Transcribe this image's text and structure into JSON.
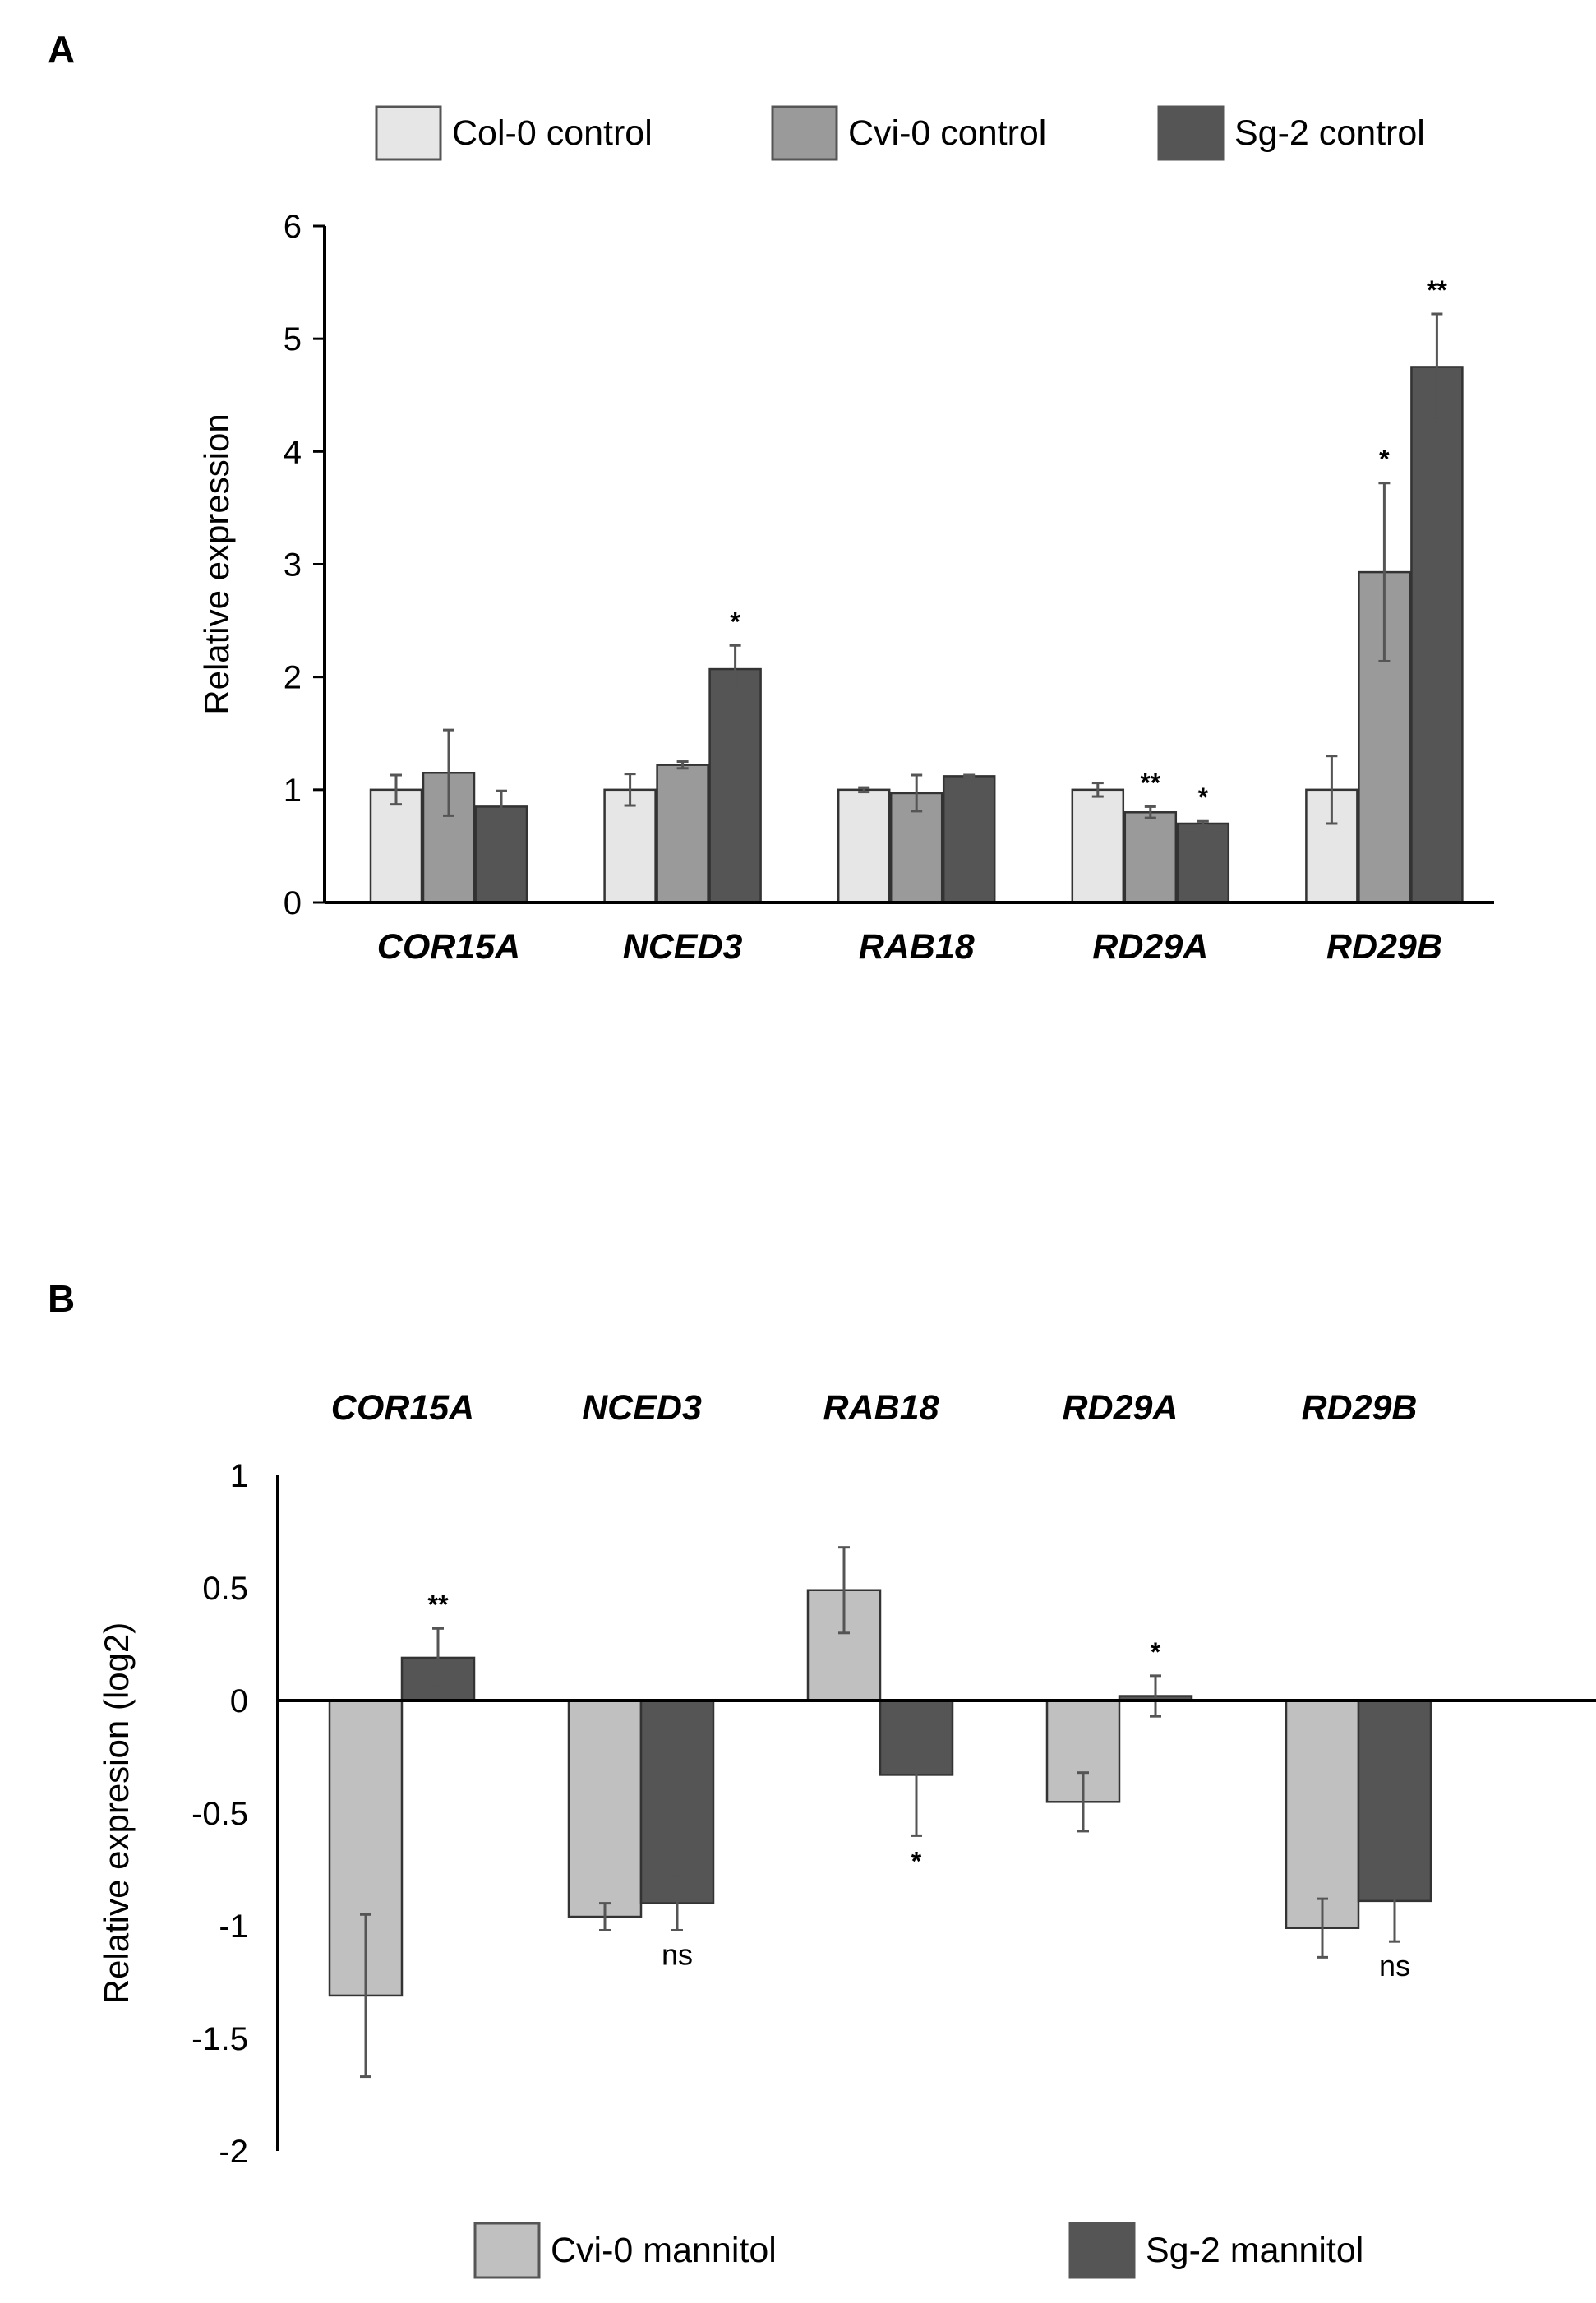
{
  "chart_data": [
    {
      "panel": "A",
      "type": "bar",
      "ylabel": "Relative expression",
      "ylim": [
        0,
        6
      ],
      "yticks": [
        0,
        1,
        2,
        3,
        4,
        5,
        6
      ],
      "categories": [
        "COR15A",
        "NCED3",
        "RAB18",
        "RD29A",
        "RD29B"
      ],
      "series": [
        {
          "name": "Col-0 control",
          "color": "#e6e6e6",
          "values": [
            1.0,
            1.0,
            1.0,
            1.0,
            1.0
          ],
          "errors": [
            0.13,
            0.14,
            0.02,
            0.06,
            0.3
          ]
        },
        {
          "name": "Cvi-0 control",
          "color": "#9a9a9a",
          "values": [
            1.15,
            1.22,
            0.97,
            0.8,
            2.93
          ],
          "errors": [
            0.38,
            0.03,
            0.16,
            0.05,
            0.79
          ]
        },
        {
          "name": "Sg-2 control",
          "color": "#555555",
          "values": [
            0.85,
            2.07,
            1.12,
            0.7,
            4.75
          ],
          "errors": [
            0.14,
            0.21,
            0.01,
            0.02,
            0.47
          ]
        }
      ],
      "significance": [
        {
          "category": "NCED3",
          "series": "Sg-2 control",
          "label": "*"
        },
        {
          "category": "RD29A",
          "series": "Cvi-0 control",
          "label": "**"
        },
        {
          "category": "RD29A",
          "series": "Sg-2 control",
          "label": "*"
        },
        {
          "category": "RD29B",
          "series": "Cvi-0 control",
          "label": "*"
        },
        {
          "category": "RD29B",
          "series": "Sg-2 control",
          "label": "**"
        }
      ],
      "legend_position": "top"
    },
    {
      "panel": "B",
      "type": "bar",
      "ylabel": "Relative expresion (log2)",
      "ylim": [
        -2,
        1
      ],
      "yticks": [
        -2,
        -1.5,
        -1,
        -0.5,
        0,
        0.5,
        1
      ],
      "categories": [
        "COR15A",
        "NCED3",
        "RAB18",
        "RD29A",
        "RD29B"
      ],
      "series": [
        {
          "name": "Cvi-0 mannitol",
          "color": "#c0c0c0",
          "values": [
            -1.31,
            -0.96,
            0.49,
            -0.45,
            -1.01
          ],
          "errors": [
            0.36,
            0.06,
            0.19,
            0.13,
            0.13
          ]
        },
        {
          "name": "Sg-2 mannitol",
          "color": "#555555",
          "values": [
            0.19,
            -0.9,
            -0.33,
            0.02,
            -0.89
          ],
          "errors": [
            0.13,
            0.12,
            0.27,
            0.09,
            0.18
          ]
        }
      ],
      "significance": [
        {
          "category": "COR15A",
          "series": "Sg-2 mannitol",
          "label": "**"
        },
        {
          "category": "NCED3",
          "series": "Sg-2 mannitol",
          "label": "ns"
        },
        {
          "category": "RAB18",
          "series": "Sg-2 mannitol",
          "label": "*"
        },
        {
          "category": "RD29A",
          "series": "Sg-2 mannitol",
          "label": "*"
        },
        {
          "category": "RD29B",
          "series": "Sg-2 mannitol",
          "label": "ns"
        }
      ],
      "category_label_position": "top",
      "legend_position": "bottom"
    }
  ]
}
